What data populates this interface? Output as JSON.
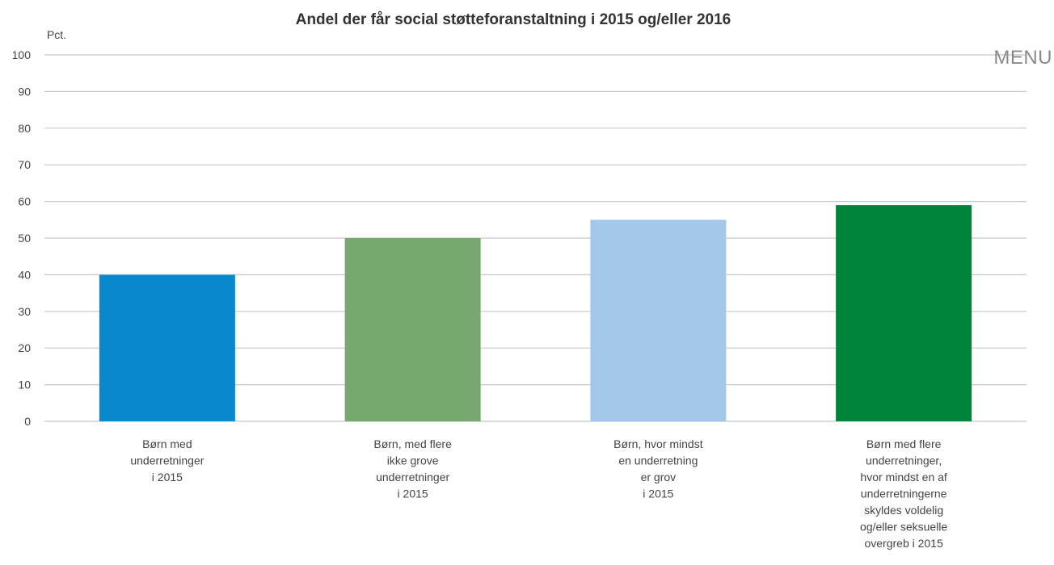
{
  "menu": {
    "label": "MENU"
  },
  "chart_data": {
    "type": "bar",
    "title": "Andel der får social støtteforanstaltning i 2015 og/eller 2016",
    "ylabel": "Pct.",
    "xlabel": "",
    "ylim": [
      0,
      100
    ],
    "yticks": [
      0,
      10,
      20,
      30,
      40,
      50,
      60,
      70,
      80,
      90,
      100
    ],
    "grid": true,
    "legend": "none",
    "categories": [
      [
        "Børn med",
        "underretninger",
        "i 2015"
      ],
      [
        "Børn, med flere",
        "ikke grove",
        "underretninger",
        "i 2015"
      ],
      [
        "Børn, hvor mindst",
        "en underretning",
        "er grov",
        "i 2015"
      ],
      [
        "Børn med flere",
        "underretninger,",
        "hvor mindst en af",
        "underretningerne",
        "skyldes voldelig",
        "og/eller seksuelle",
        "overgreb i 2015"
      ]
    ],
    "values": [
      40,
      50,
      55,
      59
    ],
    "colors": [
      "#0a88cf",
      "#77a870",
      "#a3c8ec",
      "#00843c"
    ],
    "gridColor": "#c8c8c8",
    "textColor": "#333333"
  }
}
